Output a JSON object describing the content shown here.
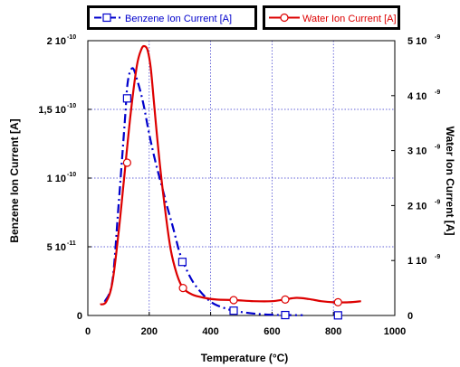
{
  "chart_data": {
    "type": "line",
    "xlabel": "Temperature (°C)",
    "ylabel": "Benzene Ion Current [A]",
    "y2label": "Water Ion Current [A]",
    "xlim": [
      0,
      1000
    ],
    "ylim": [
      0,
      2e-10
    ],
    "y2lim": [
      0,
      5e-09
    ],
    "grid": true,
    "legend": "top",
    "x_ticks": [
      {
        "value": 0,
        "label": "0"
      },
      {
        "value": 200,
        "label": "200"
      },
      {
        "value": 400,
        "label": "400"
      },
      {
        "value": 600,
        "label": "600"
      },
      {
        "value": 800,
        "label": "800"
      },
      {
        "value": 1000,
        "label": "1000"
      }
    ],
    "y_ticks": [
      {
        "value": 0,
        "mant": "0",
        "exp": ""
      },
      {
        "value": 5e-11,
        "mant": "5 10",
        "exp": "-11"
      },
      {
        "value": 1e-10,
        "mant": "1 10",
        "exp": "-10"
      },
      {
        "value": 1.5e-10,
        "mant": "1,5 10",
        "exp": "-10"
      },
      {
        "value": 2e-10,
        "mant": "2 10",
        "exp": "-10"
      }
    ],
    "y2_ticks": [
      {
        "value": 0,
        "mant": "0",
        "exp": ""
      },
      {
        "value": 1e-09,
        "mant": "1 10",
        "exp": "-9"
      },
      {
        "value": 2e-09,
        "mant": "2 10",
        "exp": "-9"
      },
      {
        "value": 3e-09,
        "mant": "3 10",
        "exp": "-9"
      },
      {
        "value": 4e-09,
        "mant": "4 10",
        "exp": "-9"
      },
      {
        "value": 5e-09,
        "mant": "5 10",
        "exp": "-9"
      }
    ],
    "series": [
      {
        "name": "Benzene Ion Current [A]",
        "axis": "left",
        "color": "#0000cc",
        "marker": "square",
        "line": "dashdot",
        "x": [
          55,
          80,
          100,
          120,
          130,
          145,
          160,
          180,
          200,
          220,
          240,
          260,
          280,
          300,
          320,
          350,
          400,
          450,
          475,
          500,
          550,
          600,
          640,
          700
        ],
        "y": [
          1e-11,
          2.5e-11,
          8e-11,
          1.4e-10,
          1.7e-10,
          1.8e-10,
          1.72e-10,
          1.55e-10,
          1.32e-10,
          1.12e-10,
          9.5e-11,
          7.8e-11,
          6.2e-11,
          4.5e-11,
          3.4e-11,
          2.2e-11,
          1e-11,
          5e-12,
          3.5e-12,
          2.5e-12,
          1.2e-12,
          5e-13,
          3e-13,
          2e-13
        ],
        "markers_x": [
          128,
          308,
          475,
          643,
          815
        ],
        "markers_y": [
          1.58e-10,
          3.9e-11,
          3.5e-12,
          3e-13,
          1e-13
        ]
      },
      {
        "name": "Water Ion Current [A]",
        "axis": "right",
        "color": "#dd0000",
        "marker": "circle",
        "line": "solid",
        "x": [
          40,
          60,
          80,
          100,
          120,
          140,
          160,
          175,
          185,
          195,
          205,
          215,
          230,
          250,
          270,
          290,
          310,
          340,
          380,
          420,
          480,
          540,
          600,
          640,
          680,
          720,
          760,
          800,
          850,
          890
        ],
        "y": [
          2e-10,
          2.5e-10,
          6e-10,
          1.5e-09,
          2.6e-09,
          3.7e-09,
          4.55e-09,
          4.85e-09,
          4.9e-09,
          4.82e-09,
          4.5e-09,
          3.9e-09,
          3e-09,
          2e-09,
          1.2e-09,
          7.5e-10,
          5e-10,
          3.8e-10,
          3.2e-10,
          2.9e-10,
          2.8e-10,
          2.6e-10,
          2.6e-10,
          2.9e-10,
          3.2e-10,
          3e-10,
          2.6e-10,
          2.4e-10,
          2.4e-10,
          2.6e-10
        ],
        "markers_x": [
          128,
          310,
          475,
          643,
          815
        ],
        "markers_y": [
          2.78e-09,
          5e-10,
          2.8e-10,
          2.9e-10,
          2.4e-10
        ]
      }
    ]
  }
}
